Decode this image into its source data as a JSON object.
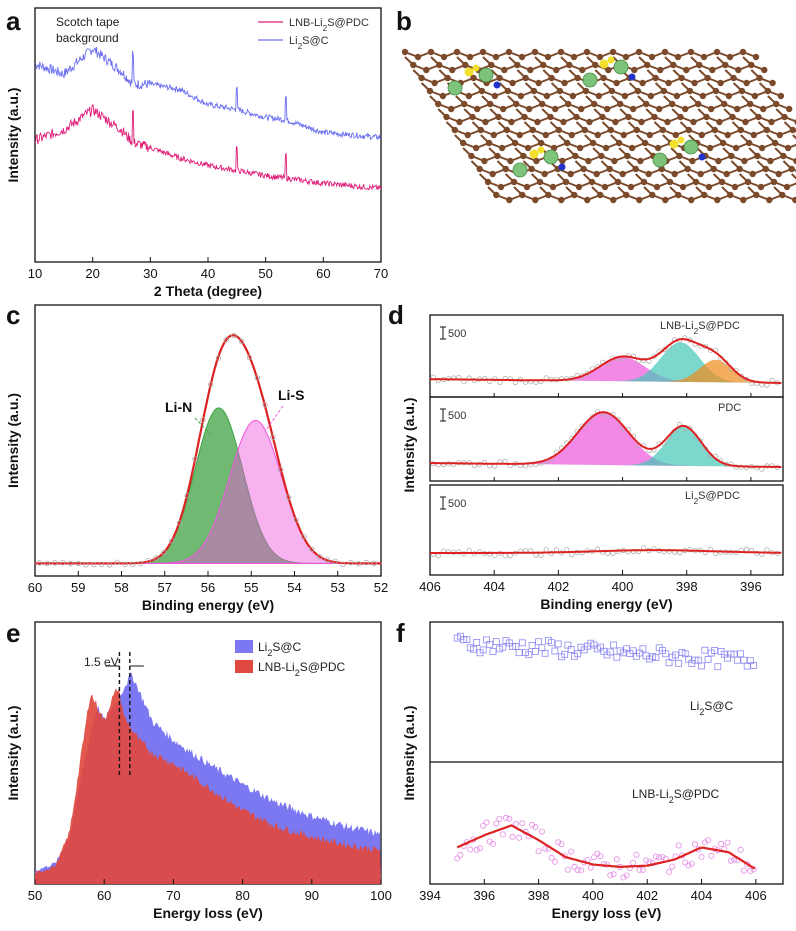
{
  "panels": {
    "a": {
      "label": "a"
    },
    "b": {
      "label": "b"
    },
    "c": {
      "label": "c"
    },
    "d": {
      "label": "d"
    },
    "e": {
      "label": "e"
    },
    "f": {
      "label": "f"
    }
  },
  "colors": {
    "pink": "#e0207a",
    "blue": "#6a6ef0",
    "red": "#dd2222",
    "green": "#3fa244",
    "magenta": "#ee55dd",
    "teal": "#44c8b8",
    "orange": "#f08a18",
    "carbon": "#7a4a2a",
    "li_atom": "#7dc47a",
    "s_atom": "#f2e02a",
    "n_atom": "#2233cc"
  },
  "chart_data": [
    {
      "panel": "a",
      "type": "line",
      "title": "",
      "xlabel": "2 Theta (degree)",
      "ylabel": "Intensity (a.u.)",
      "xlim": [
        10,
        70
      ],
      "xticks": [
        10,
        20,
        30,
        40,
        50,
        60,
        70
      ],
      "annotation": "Scotch tape background",
      "legend": [
        "LNB-Li₂S@PDC",
        "Li₂S@C"
      ],
      "series": [
        {
          "name": "Li₂S@C",
          "x": [
            10,
            15,
            20,
            25,
            27,
            30,
            35,
            40,
            45,
            50,
            53.5,
            60,
            65,
            70
          ],
          "y": [
            78,
            74,
            84,
            75,
            70,
            70,
            68,
            62,
            60,
            57,
            56,
            51,
            50,
            49
          ],
          "sharp_peaks": [
            27,
            45,
            53.5
          ]
        },
        {
          "name": "LNB-Li₂S@PDC",
          "x": [
            10,
            15,
            20,
            25,
            27,
            30,
            35,
            40,
            45,
            50,
            53.5,
            60,
            65,
            70
          ],
          "y": [
            48,
            52,
            60,
            52,
            47,
            45,
            41,
            38,
            36,
            34,
            33,
            31,
            30,
            29
          ],
          "sharp_peaks": [
            27,
            45,
            53.5
          ]
        }
      ]
    },
    {
      "panel": "c",
      "type": "area",
      "title": "",
      "xlabel": "Binding energy (eV)",
      "ylabel": "Intensity (a.u.)",
      "xlim": [
        60,
        52
      ],
      "xticks": [
        60,
        59,
        58,
        57,
        56,
        55,
        54,
        53,
        52
      ],
      "peak_labels": [
        "Li-N",
        "Li-S"
      ],
      "series": [
        {
          "name": "Li-N",
          "center": 55.75,
          "height": 0.62,
          "sigma": 0.55
        },
        {
          "name": "Li-S",
          "center": 54.9,
          "height": 0.57,
          "sigma": 0.6
        }
      ]
    },
    {
      "panel": "d",
      "type": "area",
      "title": "",
      "xlabel": "Binding energy (eV)",
      "ylabel": "Intensity (a.u.)",
      "xlim": [
        406,
        395
      ],
      "xticks": [
        406,
        404,
        402,
        400,
        398,
        396
      ],
      "scale_bar": "500",
      "subplots": [
        {
          "name": "LNB-Li₂S@PDC",
          "peaks": [
            {
              "center": 400.0,
              "height": 0.38,
              "sigma": 0.7
            },
            {
              "center": 398.2,
              "height": 0.62,
              "sigma": 0.6
            },
            {
              "center": 397.1,
              "height": 0.35,
              "sigma": 0.5
            }
          ]
        },
        {
          "name": "PDC",
          "peaks": [
            {
              "center": 400.6,
              "height": 0.8,
              "sigma": 0.8
            },
            {
              "center": 398.1,
              "height": 0.6,
              "sigma": 0.55
            }
          ]
        },
        {
          "name": "Li₂S@PDC",
          "peaks": [
            {
              "center": 399.0,
              "height": 0.04,
              "sigma": 1.8
            }
          ]
        }
      ]
    },
    {
      "panel": "e",
      "type": "area",
      "title": "",
      "xlabel": "Energy loss (eV)",
      "ylabel": "Intensity (a.u.)",
      "xlim": [
        50,
        100
      ],
      "xticks": [
        50,
        60,
        70,
        80,
        90,
        100
      ],
      "shift_annotation": "1.5 eV",
      "legend": [
        "Li₂S@C",
        "LNB-Li₂S@PDC"
      ],
      "series": [
        {
          "name": "Li₂S@C",
          "x": [
            50,
            53,
            55,
            57,
            59,
            60,
            61,
            62,
            63,
            64,
            65,
            67,
            70,
            75,
            80,
            85,
            90,
            95,
            100
          ],
          "y": [
            5,
            8,
            18,
            45,
            68,
            62,
            67,
            70,
            76,
            80,
            74,
            62,
            55,
            46,
            38,
            31,
            26,
            22,
            19
          ]
        },
        {
          "name": "LNB-Li₂S@PDC",
          "x": [
            50,
            53,
            55,
            57,
            58,
            59,
            60,
            61,
            62,
            63,
            65,
            67,
            70,
            75,
            80,
            85,
            90,
            95,
            100
          ],
          "y": [
            4,
            7,
            20,
            55,
            73,
            68,
            62,
            70,
            75,
            63,
            55,
            50,
            46,
            37,
            28,
            22,
            18,
            15,
            13
          ]
        }
      ]
    },
    {
      "panel": "f",
      "type": "scatter",
      "title": "",
      "xlabel": "Energy loss (eV)",
      "ylabel": "Intensity (a.u.)",
      "xlim": [
        394,
        407
      ],
      "xticks": [
        394,
        396,
        398,
        400,
        402,
        404,
        406
      ],
      "series": [
        {
          "name": "Li₂S@C",
          "x": [
            395,
            406
          ],
          "y": [
            0.85,
            0.72
          ]
        },
        {
          "name": "LNB-Li₂S@PDC",
          "x": [
            395,
            396,
            397,
            398,
            399,
            400,
            401,
            402,
            403,
            404,
            405,
            406
          ],
          "y": [
            0.3,
            0.4,
            0.48,
            0.36,
            0.22,
            0.16,
            0.14,
            0.15,
            0.2,
            0.3,
            0.26,
            0.12
          ]
        }
      ]
    }
  ]
}
